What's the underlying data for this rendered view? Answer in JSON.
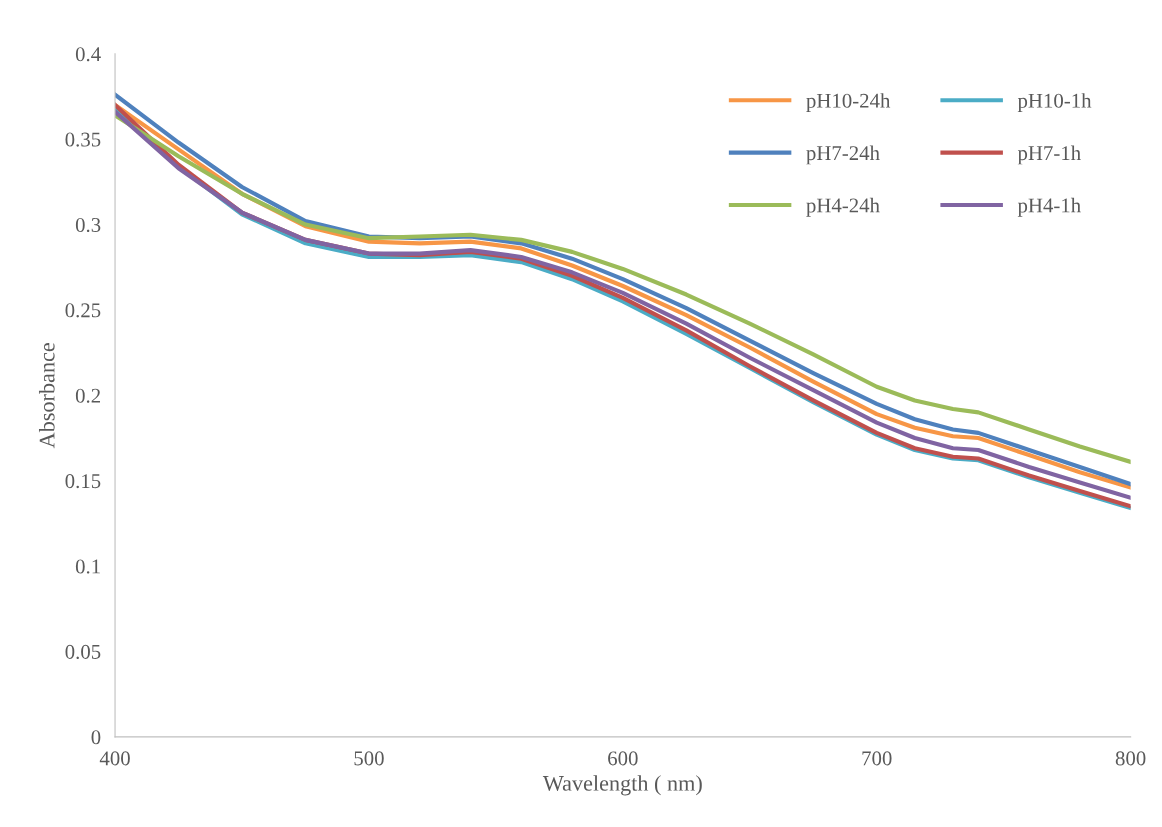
{
  "chart_data": {
    "type": "line",
    "xlabel": "Wavelength ( nm)",
    "ylabel": "Absorbance",
    "x": [
      400,
      425,
      450,
      475,
      500,
      520,
      540,
      560,
      580,
      600,
      625,
      650,
      675,
      700,
      715,
      730,
      740,
      760,
      780,
      800
    ],
    "series": [
      {
        "name": "pH10-24h",
        "color": "#f79646",
        "values": [
          0.37,
          0.344,
          0.318,
          0.299,
          0.29,
          0.289,
          0.29,
          0.286,
          0.276,
          0.264,
          0.247,
          0.228,
          0.208,
          0.189,
          0.181,
          0.176,
          0.175,
          0.165,
          0.155,
          0.146
        ]
      },
      {
        "name": "pH10-1h",
        "color": "#4bacc6",
        "values": [
          0.368,
          0.334,
          0.306,
          0.289,
          0.281,
          0.281,
          0.282,
          0.278,
          0.268,
          0.255,
          0.236,
          0.216,
          0.196,
          0.177,
          0.168,
          0.163,
          0.162,
          0.152,
          0.143,
          0.134
        ]
      },
      {
        "name": "pH7-24h",
        "color": "#4f81bd",
        "values": [
          0.376,
          0.348,
          0.322,
          0.302,
          0.293,
          0.292,
          0.293,
          0.289,
          0.28,
          0.268,
          0.251,
          0.232,
          0.213,
          0.195,
          0.186,
          0.18,
          0.178,
          0.168,
          0.158,
          0.148
        ]
      },
      {
        "name": "pH7-1h",
        "color": "#c0504d",
        "values": [
          0.37,
          0.335,
          0.307,
          0.291,
          0.283,
          0.282,
          0.284,
          0.28,
          0.27,
          0.257,
          0.238,
          0.217,
          0.197,
          0.178,
          0.169,
          0.164,
          0.163,
          0.153,
          0.144,
          0.135
        ]
      },
      {
        "name": "pH4-24h",
        "color": "#9bbb59",
        "values": [
          0.364,
          0.34,
          0.318,
          0.3,
          0.292,
          0.293,
          0.294,
          0.291,
          0.284,
          0.274,
          0.259,
          0.242,
          0.224,
          0.205,
          0.197,
          0.192,
          0.19,
          0.18,
          0.17,
          0.161
        ]
      },
      {
        "name": "pH4-1h",
        "color": "#8064a2",
        "values": [
          0.366,
          0.333,
          0.307,
          0.291,
          0.283,
          0.283,
          0.285,
          0.281,
          0.272,
          0.26,
          0.242,
          0.222,
          0.203,
          0.184,
          0.175,
          0.169,
          0.168,
          0.158,
          0.149,
          0.14
        ]
      }
    ],
    "xlim": [
      400,
      800
    ],
    "xticks": [
      400,
      500,
      600,
      700,
      800
    ],
    "ylim": [
      0,
      0.4
    ],
    "yticks": [
      0,
      0.05,
      0.1,
      0.15,
      0.2,
      0.25,
      0.3,
      0.35,
      0.4
    ],
    "grid": false,
    "legend": "top right",
    "marker": "none",
    "line_style": "solid"
  }
}
